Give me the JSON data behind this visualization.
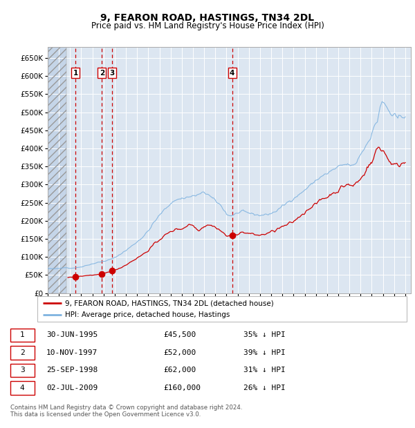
{
  "title": "9, FEARON ROAD, HASTINGS, TN34 2DL",
  "subtitle": "Price paid vs. HM Land Registry's House Price Index (HPI)",
  "ylim": [
    0,
    680000
  ],
  "yticks": [
    0,
    50000,
    100000,
    150000,
    200000,
    250000,
    300000,
    350000,
    400000,
    450000,
    500000,
    550000,
    600000,
    650000
  ],
  "ytick_labels": [
    "£0",
    "£50K",
    "£100K",
    "£150K",
    "£200K",
    "£250K",
    "£300K",
    "£350K",
    "£400K",
    "£450K",
    "£500K",
    "£550K",
    "£600K",
    "£650K"
  ],
  "xlim_start": 1993.0,
  "xlim_end": 2025.5,
  "plot_bg_color": "#dce6f1",
  "hpi_color": "#7fb3e0",
  "price_color": "#cc0000",
  "transactions": [
    {
      "id": 1,
      "date_label": "30-JUN-1995",
      "price": 45500,
      "pct": "35%",
      "x": 1995.5
    },
    {
      "id": 2,
      "date_label": "10-NOV-1997",
      "price": 52000,
      "pct": "39%",
      "x": 1997.85
    },
    {
      "id": 3,
      "date_label": "25-SEP-1998",
      "price": 62000,
      "pct": "31%",
      "x": 1998.75
    },
    {
      "id": 4,
      "date_label": "02-JUL-2009",
      "price": 160000,
      "pct": "26%",
      "x": 2009.5
    }
  ],
  "legend_price_label": "9, FEARON ROAD, HASTINGS, TN34 2DL (detached house)",
  "legend_hpi_label": "HPI: Average price, detached house, Hastings",
  "footer": "Contains HM Land Registry data © Crown copyright and database right 2024.\nThis data is licensed under the Open Government Licence v3.0.",
  "table_rows": [
    [
      "1",
      "30-JUN-1995",
      "£45,500",
      "35% ↓ HPI"
    ],
    [
      "2",
      "10-NOV-1997",
      "£52,000",
      "39% ↓ HPI"
    ],
    [
      "3",
      "25-SEP-1998",
      "£62,000",
      "31% ↓ HPI"
    ],
    [
      "4",
      "02-JUL-2009",
      "£160,000",
      "26% ↓ HPI"
    ]
  ]
}
